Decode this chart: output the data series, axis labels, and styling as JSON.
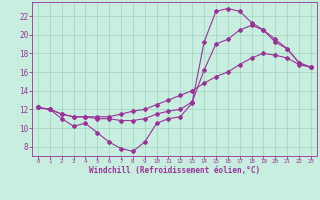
{
  "xlabel": "Windchill (Refroidissement éolien,°C)",
  "xlim": [
    -0.5,
    23.5
  ],
  "ylim": [
    7,
    23.5
  ],
  "yticks": [
    8,
    10,
    12,
    14,
    16,
    18,
    20,
    22
  ],
  "xticks": [
    0,
    1,
    2,
    3,
    4,
    5,
    6,
    7,
    8,
    9,
    10,
    11,
    12,
    13,
    14,
    15,
    16,
    17,
    18,
    19,
    20,
    21,
    22,
    23
  ],
  "bg_color": "#c8eee0",
  "line_color": "#993399",
  "grid_color": "#a0d4c0",
  "curve1_x": [
    0,
    1,
    2,
    3,
    4,
    5,
    6,
    7,
    8,
    9,
    10,
    11,
    12,
    13,
    14,
    15,
    16,
    17,
    18,
    19,
    20,
    21,
    22,
    23
  ],
  "curve1_y": [
    12.2,
    12.0,
    11.0,
    10.2,
    10.5,
    9.5,
    8.5,
    7.8,
    7.5,
    8.5,
    10.5,
    11.0,
    11.2,
    12.7,
    19.2,
    22.5,
    22.8,
    22.5,
    21.3,
    20.5,
    19.2,
    18.5,
    17.0,
    16.5
  ],
  "curve2_x": [
    0,
    1,
    2,
    3,
    4,
    5,
    6,
    7,
    8,
    9,
    10,
    11,
    12,
    13,
    14,
    15,
    16,
    17,
    18,
    19,
    20,
    21,
    22,
    23
  ],
  "curve2_y": [
    12.2,
    12.0,
    11.5,
    11.2,
    11.2,
    11.0,
    11.0,
    10.8,
    10.8,
    11.0,
    11.5,
    11.8,
    12.0,
    12.8,
    16.2,
    19.0,
    19.5,
    20.5,
    21.0,
    20.5,
    19.5,
    18.5,
    17.0,
    16.5
  ],
  "curve3_x": [
    0,
    1,
    2,
    3,
    4,
    5,
    6,
    7,
    8,
    9,
    10,
    11,
    12,
    13,
    14,
    15,
    16,
    17,
    18,
    19,
    20,
    21,
    22,
    23
  ],
  "curve3_y": [
    12.2,
    12.0,
    11.5,
    11.2,
    11.2,
    11.2,
    11.2,
    11.5,
    11.8,
    12.0,
    12.5,
    13.0,
    13.5,
    14.0,
    14.8,
    15.5,
    16.0,
    16.8,
    17.5,
    18.0,
    17.8,
    17.5,
    16.8,
    16.5
  ]
}
